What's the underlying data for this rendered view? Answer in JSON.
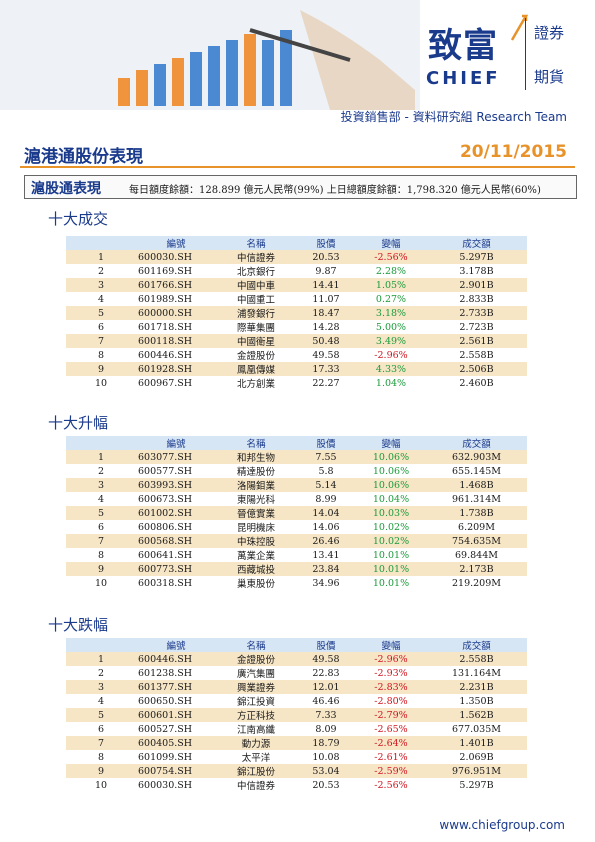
{
  "logo": {
    "cn": "致富",
    "en": "CHIEF",
    "side1": "證券",
    "side2": "期貨"
  },
  "dept": "投資銷售部 - 資料研究組 Research Team",
  "title": "滬港通股份表現",
  "date": "20/11/2015",
  "quota": {
    "title": "滬股通表現",
    "text": "每日額度餘額：128.899 億元人民幣(99%)    上日總額度餘額：1,798.320 億元人民幣(60%)"
  },
  "headers": [
    "",
    "編號",
    "名稱",
    "股價",
    "變幅",
    "成交額"
  ],
  "sections": [
    {
      "title": "十大成交",
      "rows": [
        [
          "1",
          "600030.SH",
          "中信證券",
          "20.53",
          "-2.56%",
          "5.297B"
        ],
        [
          "2",
          "601169.SH",
          "北京銀行",
          "9.87",
          "2.28%",
          "3.178B"
        ],
        [
          "3",
          "601766.SH",
          "中國中車",
          "14.41",
          "1.05%",
          "2.901B"
        ],
        [
          "4",
          "601989.SH",
          "中國重工",
          "11.07",
          "0.27%",
          "2.833B"
        ],
        [
          "5",
          "600000.SH",
          "浦發銀行",
          "18.47",
          "3.18%",
          "2.733B"
        ],
        [
          "6",
          "601718.SH",
          "際華集團",
          "14.28",
          "5.00%",
          "2.723B"
        ],
        [
          "7",
          "600118.SH",
          "中國衛星",
          "50.48",
          "3.49%",
          "2.561B"
        ],
        [
          "8",
          "600446.SH",
          "金證股份",
          "49.58",
          "-2.96%",
          "2.558B"
        ],
        [
          "9",
          "601928.SH",
          "鳳凰傳媒",
          "17.33",
          "4.33%",
          "2.506B"
        ],
        [
          "10",
          "600967.SH",
          "北方創業",
          "22.27",
          "1.04%",
          "2.460B"
        ]
      ]
    },
    {
      "title": "十大升幅",
      "rows": [
        [
          "1",
          "603077.SH",
          "和邦生物",
          "7.55",
          "10.06%",
          "632.903M"
        ],
        [
          "2",
          "600577.SH",
          "精達股份",
          "5.8",
          "10.06%",
          "655.145M"
        ],
        [
          "3",
          "603993.SH",
          "洛陽鉬業",
          "5.14",
          "10.06%",
          "1.468B"
        ],
        [
          "4",
          "600673.SH",
          "東陽光科",
          "8.99",
          "10.04%",
          "961.314M"
        ],
        [
          "5",
          "601002.SH",
          "晉億實業",
          "14.04",
          "10.03%",
          "1.738B"
        ],
        [
          "6",
          "600806.SH",
          "昆明機床",
          "14.06",
          "10.02%",
          "6.209M"
        ],
        [
          "7",
          "600568.SH",
          "中珠控股",
          "26.46",
          "10.02%",
          "754.635M"
        ],
        [
          "8",
          "600641.SH",
          "萬業企業",
          "13.41",
          "10.01%",
          "69.844M"
        ],
        [
          "9",
          "600773.SH",
          "西藏城投",
          "23.84",
          "10.01%",
          "2.173B"
        ],
        [
          "10",
          "600318.SH",
          "巢東股份",
          "34.96",
          "10.01%",
          "219.209M"
        ]
      ]
    },
    {
      "title": "十大跌幅",
      "rows": [
        [
          "1",
          "600446.SH",
          "金證股份",
          "49.58",
          "-2.96%",
          "2.558B"
        ],
        [
          "2",
          "601238.SH",
          "廣汽集團",
          "22.83",
          "-2.93%",
          "131.164M"
        ],
        [
          "3",
          "601377.SH",
          "興業證券",
          "12.01",
          "-2.83%",
          "2.231B"
        ],
        [
          "4",
          "600650.SH",
          "錦江投資",
          "46.46",
          "-2.80%",
          "1.350B"
        ],
        [
          "5",
          "600601.SH",
          "方正科技",
          "7.33",
          "-2.79%",
          "1.562B"
        ],
        [
          "6",
          "600527.SH",
          "江南高纖",
          "8.09",
          "-2.65%",
          "677.035M"
        ],
        [
          "7",
          "600405.SH",
          "動力源",
          "18.79",
          "-2.64%",
          "1.401B"
        ],
        [
          "8",
          "601099.SH",
          "太平洋",
          "10.08",
          "-2.61%",
          "2.069B"
        ],
        [
          "9",
          "600754.SH",
          "錦江股份",
          "53.04",
          "-2.59%",
          "976.951M"
        ],
        [
          "10",
          "600030.SH",
          "中信證券",
          "20.53",
          "-2.56%",
          "5.297B"
        ]
      ]
    }
  ],
  "footer": "www.chiefgroup.com",
  "colors": {
    "brand": "#1a3a8c",
    "accent": "#e8922a",
    "up": "#1a9a3a",
    "down": "#d0141e",
    "row_alt": "#f7e6c6",
    "header_bg": "#d7e6f4"
  }
}
